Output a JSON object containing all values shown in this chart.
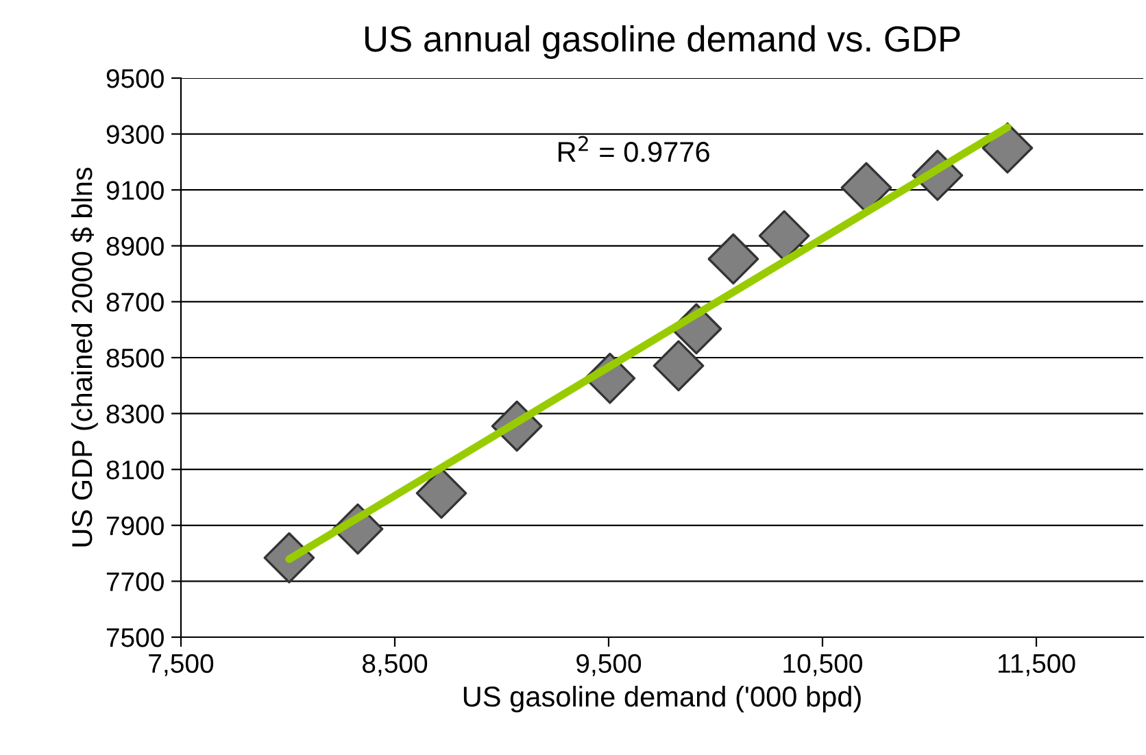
{
  "chart_data": {
    "type": "scatter",
    "title": "US annual gasoline demand vs. GDP",
    "xlabel": "US gasoline demand ('000 bpd)",
    "ylabel": "US GDP (chained 2000 $ blns",
    "annotations": [
      "R$^{2}$ = 0.9776"
    ],
    "series": [
      {
        "color": "#808080",
        "marker": "diamond",
        "x": [
          8006,
          8327,
          8718,
          9071,
          9506,
          9827,
          9910,
          10083,
          10321,
          10705,
          11038,
          11365
        ],
        "values": [
          7784,
          7887,
          8015,
          8255,
          8426,
          8471,
          8603,
          8853,
          8936,
          9108,
          9152,
          9250
        ]
      },
      {
        "type": "line",
        "color": "#99cc00",
        "marker": "none",
        "line_style": "solid",
        "x": [
          8006,
          11365
        ],
        "values": [
          7779,
          9324
        ]
      }
    ],
    "xlim": [
      7500,
      12000
    ],
    "xticks": [
      {
        "value": 7500,
        "label": "7,500"
      },
      {
        "value": 8500,
        "label": "8,500"
      },
      {
        "value": 9500,
        "label": "9,500"
      },
      {
        "value": 10500,
        "label": "10,500"
      },
      {
        "value": 11500,
        "label": "11,500"
      }
    ],
    "ylim": [
      7500,
      9500
    ],
    "yticks": [
      7500,
      7700,
      7900,
      8100,
      8300,
      8500,
      8700,
      8900,
      9100,
      9300,
      9500
    ],
    "grid": "y",
    "legend": false
  }
}
